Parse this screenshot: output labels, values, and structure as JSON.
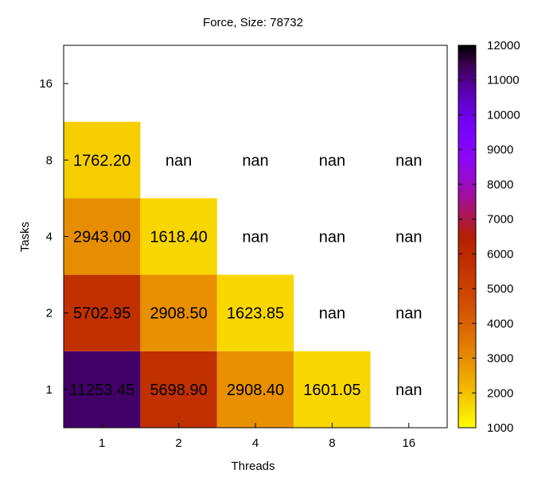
{
  "chart_data": {
    "type": "heatmap",
    "title": "Force, Size: 78732",
    "xlabel": "Threads",
    "ylabel": "Tasks",
    "x_categories": [
      "1",
      "2",
      "4",
      "8",
      "16"
    ],
    "y_categories": [
      "1",
      "2",
      "4",
      "8",
      "16"
    ],
    "cells": [
      {
        "x": "1",
        "y": "1",
        "value": 11253.45,
        "label": "11253.45"
      },
      {
        "x": "2",
        "y": "1",
        "value": 5698.9,
        "label": "5698.90"
      },
      {
        "x": "4",
        "y": "1",
        "value": 2908.4,
        "label": "2908.40"
      },
      {
        "x": "8",
        "y": "1",
        "value": 1601.05,
        "label": "1601.05"
      },
      {
        "x": "16",
        "y": "1",
        "value": null,
        "label": "nan"
      },
      {
        "x": "1",
        "y": "2",
        "value": 5702.95,
        "label": "5702.95"
      },
      {
        "x": "2",
        "y": "2",
        "value": 2908.5,
        "label": "2908.50"
      },
      {
        "x": "4",
        "y": "2",
        "value": 1623.85,
        "label": "1623.85"
      },
      {
        "x": "8",
        "y": "2",
        "value": null,
        "label": "nan"
      },
      {
        "x": "16",
        "y": "2",
        "value": null,
        "label": "nan"
      },
      {
        "x": "1",
        "y": "4",
        "value": 2943.0,
        "label": "2943.00"
      },
      {
        "x": "2",
        "y": "4",
        "value": 1618.4,
        "label": "1618.40"
      },
      {
        "x": "4",
        "y": "4",
        "value": null,
        "label": "nan"
      },
      {
        "x": "8",
        "y": "4",
        "value": null,
        "label": "nan"
      },
      {
        "x": "16",
        "y": "4",
        "value": null,
        "label": "nan"
      },
      {
        "x": "1",
        "y": "8",
        "value": 1762.2,
        "label": "1762.20"
      },
      {
        "x": "2",
        "y": "8",
        "value": null,
        "label": "nan"
      },
      {
        "x": "4",
        "y": "8",
        "value": null,
        "label": "nan"
      },
      {
        "x": "8",
        "y": "8",
        "value": null,
        "label": "nan"
      },
      {
        "x": "16",
        "y": "8",
        "value": null,
        "label": "nan"
      }
    ],
    "colorbar": {
      "range": [
        1000,
        12000
      ],
      "ticks": [
        "1000",
        "2000",
        "3000",
        "4000",
        "5000",
        "6000",
        "7000",
        "8000",
        "9000",
        "10000",
        "11000",
        "12000"
      ],
      "palette": "gnuplot-hot"
    },
    "grid": false,
    "legend": "colorbar-right"
  }
}
